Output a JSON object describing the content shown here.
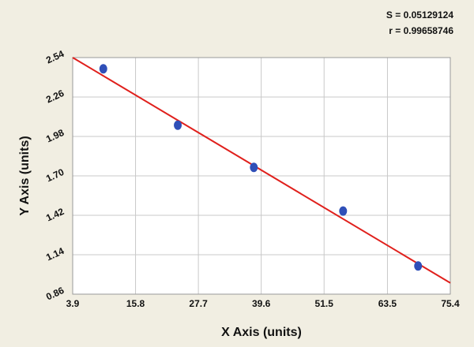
{
  "chart_data": {
    "type": "scatter",
    "x_label": "X Axis (units)",
    "y_label": "Y Axis (units)",
    "annotations": [
      "S = 0.05129124",
      "r = 0.99658746"
    ],
    "x": [
      9.7,
      23.8,
      38.2,
      55.1,
      69.3
    ],
    "values": [
      2.46,
      2.06,
      1.76,
      1.45,
      1.06
    ],
    "color": "#2f4fb8",
    "fit_line": {
      "x": [
        3.9,
        75.4
      ],
      "y": [
        2.54,
        0.94
      ],
      "color": "#e0201c"
    },
    "xlim": [
      3.9,
      75.4
    ],
    "xticks": [
      3.9,
      15.8,
      27.7,
      39.6,
      51.5,
      63.5,
      75.4
    ],
    "ylim": [
      0.86,
      2.54
    ],
    "yticks": [
      0.86,
      1.14,
      1.42,
      {
        "value": 1.7,
        "label": "1.70"
      },
      1.98,
      2.26,
      2.54
    ],
    "grid": true
  }
}
